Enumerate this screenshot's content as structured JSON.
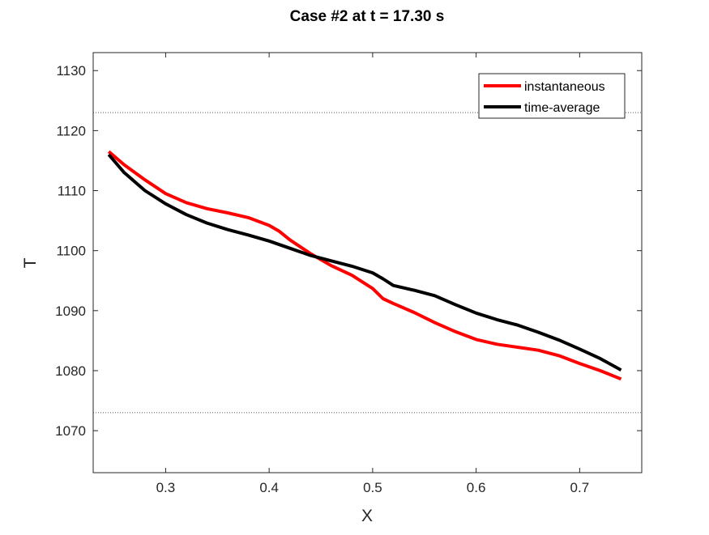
{
  "chart_data": {
    "type": "line",
    "title": "Case #2 at t = 17.30 s",
    "xlabel": "X",
    "ylabel": "T",
    "xlim": [
      0.23,
      0.76
    ],
    "ylim": [
      1063,
      1133
    ],
    "xticks": [
      0.3,
      0.4,
      0.5,
      0.6,
      0.7
    ],
    "xtick_labels": [
      "0.3",
      "0.4",
      "0.5",
      "0.6",
      "0.7"
    ],
    "yticks": [
      1070,
      1080,
      1090,
      1100,
      1110,
      1120,
      1130
    ],
    "ytick_labels": [
      "1070",
      "1080",
      "1090",
      "1100",
      "1110",
      "1120",
      "1130"
    ],
    "grid": false,
    "legend_position": "top-right",
    "reference_lines": [
      1123,
      1073
    ],
    "series": [
      {
        "name": "instantaneous",
        "color": "#ff0000",
        "x": [
          0.245,
          0.26,
          0.28,
          0.3,
          0.32,
          0.34,
          0.36,
          0.38,
          0.4,
          0.41,
          0.42,
          0.44,
          0.46,
          0.48,
          0.5,
          0.51,
          0.52,
          0.54,
          0.56,
          0.58,
          0.6,
          0.62,
          0.64,
          0.66,
          0.68,
          0.7,
          0.72,
          0.74
        ],
        "y": [
          1116.5,
          1114.3,
          1111.8,
          1109.5,
          1108.0,
          1107.0,
          1106.3,
          1105.5,
          1104.2,
          1103.2,
          1101.8,
          1099.5,
          1097.5,
          1095.9,
          1093.7,
          1092.0,
          1091.2,
          1089.7,
          1088.0,
          1086.5,
          1085.2,
          1084.4,
          1083.9,
          1083.4,
          1082.5,
          1081.2,
          1080.0,
          1078.6
        ]
      },
      {
        "name": "time-average",
        "color": "#000000",
        "x": [
          0.245,
          0.26,
          0.28,
          0.3,
          0.32,
          0.34,
          0.36,
          0.38,
          0.4,
          0.42,
          0.44,
          0.46,
          0.48,
          0.5,
          0.51,
          0.52,
          0.54,
          0.56,
          0.58,
          0.6,
          0.62,
          0.64,
          0.66,
          0.68,
          0.7,
          0.72,
          0.74
        ],
        "y": [
          1116.0,
          1113.0,
          1110.0,
          1107.8,
          1106.0,
          1104.6,
          1103.5,
          1102.6,
          1101.6,
          1100.4,
          1099.2,
          1098.3,
          1097.4,
          1096.3,
          1095.3,
          1094.2,
          1093.4,
          1092.5,
          1091.0,
          1089.6,
          1088.5,
          1087.6,
          1086.4,
          1085.1,
          1083.6,
          1082.0,
          1080.1
        ]
      }
    ]
  }
}
